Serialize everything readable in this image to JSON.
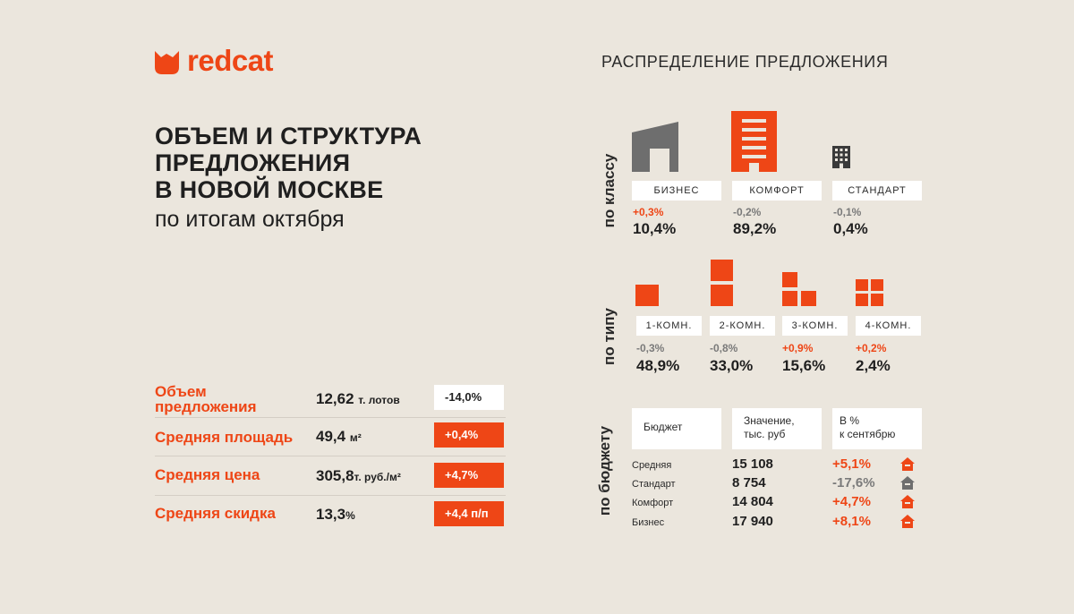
{
  "brand": {
    "name": "redcat",
    "accent": "#ee4616",
    "gray": "#6e6e6e"
  },
  "headline": {
    "line1": "ОБЪЕМ И СТРУКТУРА",
    "line2": "ПРЕДЛОЖЕНИЯ",
    "line3": "В НОВОЙ МОСКВЕ",
    "subtitle": "по итогам октября"
  },
  "metrics": [
    {
      "label": "Объем предложения",
      "value": "12,62",
      "unit": "т. лотов",
      "change": "-14,0%",
      "change_style": "white"
    },
    {
      "label": "Средняя площадь",
      "value": "49,4",
      "unit": "м²",
      "change": "+0,4%",
      "change_style": "red"
    },
    {
      "label": "Средняя цена",
      "value": "305,8",
      "unit": "т. руб./м²",
      "change": "+4,7%",
      "change_style": "red"
    },
    {
      "label": "Средняя скидка",
      "value": "13,3",
      "unit": "%",
      "change": "+4,4 п/п",
      "change_style": "red"
    }
  ],
  "distribution": {
    "title": "РАСПРЕДЕЛЕНИЕ ПРЕДЛОЖЕНИЯ",
    "by_class": {
      "axis_label": "по классу",
      "items": [
        {
          "label": "БИЗНЕС",
          "change": "+0,3%",
          "share": "10,4%",
          "icon": "business-building-icon"
        },
        {
          "label": "КОМФОРТ",
          "change": "-0,2%",
          "share": "89,2%",
          "icon": "comfort-building-icon"
        },
        {
          "label": "СТАНДАРТ",
          "change": "-0,1%",
          "share": "0,4%",
          "icon": "standard-building-icon"
        }
      ]
    },
    "by_type": {
      "axis_label": "по типу",
      "items": [
        {
          "label": "1-КОМН.",
          "change": "-0,3%",
          "share": "48,9%",
          "icon": "one-room-icon"
        },
        {
          "label": "2-КОМН.",
          "change": "-0,8%",
          "share": "33,0%",
          "icon": "two-room-icon"
        },
        {
          "label": "3-КОМН.",
          "change": "+0,9%",
          "share": "15,6%",
          "icon": "three-room-icon"
        },
        {
          "label": "4-КОМН.",
          "change": "+0,2%",
          "share": "2,4%",
          "icon": "four-room-icon"
        }
      ]
    },
    "by_budget": {
      "axis_label": "по бюджету",
      "headers": {
        "budget": "Бюджет",
        "value_line1": "Значение,",
        "value_line2": "тыс. руб",
        "pct_line1": "В %",
        "pct_line2": "к сентябрю"
      },
      "rows": [
        {
          "label": "Средняя",
          "value": "15 108",
          "change": "+5,1%",
          "trend": "up"
        },
        {
          "label": "Стандарт",
          "value": "8 754",
          "change": "-17,6%",
          "trend": "down"
        },
        {
          "label": "Комфорт",
          "value": "14 804",
          "change": "+4,7%",
          "trend": "up"
        },
        {
          "label": "Бизнес",
          "value": "17 940",
          "change": "+8,1%",
          "trend": "up"
        }
      ]
    }
  }
}
